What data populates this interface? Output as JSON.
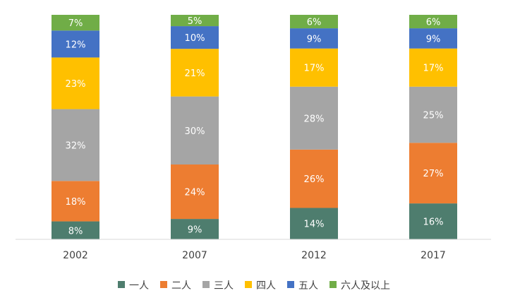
{
  "chart_data": {
    "type": "bar",
    "stacked": true,
    "unit": "%",
    "categories": [
      "2002",
      "2007",
      "2012",
      "2017"
    ],
    "series": [
      {
        "name": "一人",
        "color": "#4e7d6e",
        "values": [
          8,
          9,
          14,
          16
        ]
      },
      {
        "name": "二人",
        "color": "#ed7d31",
        "values": [
          18,
          24,
          26,
          27
        ]
      },
      {
        "name": "三人",
        "color": "#a5a5a5",
        "values": [
          32,
          30,
          28,
          25
        ]
      },
      {
        "name": "四人",
        "color": "#ffc000",
        "values": [
          23,
          21,
          17,
          17
        ]
      },
      {
        "name": "五人",
        "color": "#4472c4",
        "values": [
          12,
          10,
          9,
          9
        ]
      },
      {
        "name": "六人及以上",
        "color": "#70ad47",
        "values": [
          7,
          5,
          6,
          6
        ]
      }
    ],
    "legend_position": "bottom",
    "grid": false
  }
}
